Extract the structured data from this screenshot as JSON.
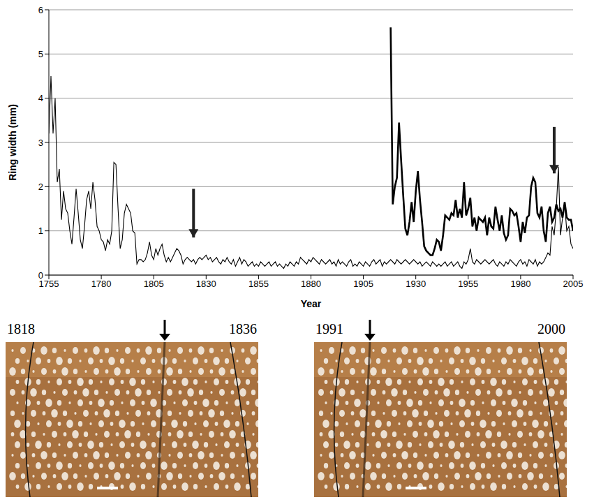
{
  "chart_data": {
    "type": "line",
    "x_label": "Year",
    "y_label": "Ring width (mm)",
    "xlim": [
      1755,
      2005
    ],
    "xticks": [
      1755,
      1780,
      1805,
      1830,
      1855,
      1880,
      1905,
      1930,
      1955,
      1980,
      2005
    ],
    "ylim": [
      0,
      6
    ],
    "yticks": [
      0,
      1,
      2,
      3,
      4,
      5,
      6
    ],
    "grid": true,
    "series": [
      {
        "color": "#000000",
        "line_style": "thin",
        "x": [
          1755,
          1756,
          1757,
          1758,
          1759,
          1760,
          1761,
          1762,
          1763,
          1764,
          1765,
          1766,
          1767,
          1768,
          1769,
          1770,
          1771,
          1772,
          1773,
          1774,
          1775,
          1776,
          1777,
          1778,
          1779,
          1780,
          1781,
          1782,
          1783,
          1784,
          1785,
          1786,
          1787,
          1788,
          1789,
          1790,
          1791,
          1792,
          1793,
          1794,
          1795,
          1796,
          1797,
          1798,
          1799,
          1800,
          1801,
          1802,
          1803,
          1804,
          1805,
          1806,
          1807,
          1808,
          1809,
          1810,
          1811,
          1812,
          1813,
          1814,
          1815,
          1816,
          1817,
          1818,
          1819,
          1820,
          1821,
          1822,
          1823,
          1824,
          1825,
          1826,
          1827,
          1828,
          1829,
          1830,
          1831,
          1832,
          1833,
          1834,
          1835,
          1836,
          1837,
          1838,
          1839,
          1840,
          1841,
          1842,
          1843,
          1844,
          1845,
          1846,
          1847,
          1848,
          1849,
          1850,
          1851,
          1852,
          1853,
          1854,
          1855,
          1856,
          1857,
          1858,
          1859,
          1860,
          1861,
          1862,
          1863,
          1864,
          1865,
          1866,
          1867,
          1868,
          1869,
          1870,
          1871,
          1872,
          1873,
          1874,
          1875,
          1876,
          1877,
          1878,
          1879,
          1880,
          1881,
          1882,
          1883,
          1884,
          1885,
          1886,
          1887,
          1888,
          1889,
          1890,
          1891,
          1892,
          1893,
          1894,
          1895,
          1896,
          1897,
          1898,
          1899,
          1900,
          1901,
          1902,
          1903,
          1904,
          1905,
          1906,
          1907,
          1908,
          1909,
          1910,
          1911,
          1912,
          1913,
          1914,
          1915,
          1916,
          1917,
          1918,
          1919,
          1920,
          1921,
          1922,
          1923,
          1924,
          1925,
          1926,
          1927,
          1928,
          1929,
          1930,
          1931,
          1932,
          1933,
          1934,
          1935,
          1936,
          1937,
          1938,
          1939,
          1940,
          1941,
          1942,
          1943,
          1944,
          1945,
          1946,
          1947,
          1948,
          1949,
          1950,
          1951,
          1952,
          1953,
          1954,
          1955,
          1956,
          1957,
          1958,
          1959,
          1960,
          1961,
          1962,
          1963,
          1964,
          1965,
          1966,
          1967,
          1968,
          1969,
          1970,
          1971,
          1972,
          1973,
          1974,
          1975,
          1976,
          1977,
          1978,
          1979,
          1980,
          1981,
          1982,
          1983,
          1984,
          1985,
          1986,
          1987,
          1988,
          1989,
          1990,
          1991,
          1992,
          1993,
          1994,
          1995,
          1996,
          1997,
          1998,
          1999,
          2000,
          2001,
          2002,
          2003,
          2004,
          2005
        ],
        "values": [
          3.2,
          4.5,
          3.2,
          4.0,
          2.1,
          2.4,
          1.25,
          1.9,
          1.5,
          1.4,
          1.0,
          0.7,
          1.3,
          1.95,
          1.4,
          0.8,
          0.6,
          1.1,
          1.7,
          1.9,
          1.5,
          2.1,
          1.7,
          1.1,
          1.0,
          0.8,
          0.75,
          0.55,
          0.8,
          0.7,
          1.0,
          2.55,
          2.5,
          1.5,
          0.6,
          0.8,
          1.4,
          1.6,
          1.5,
          1.4,
          1.0,
          0.95,
          0.25,
          0.35,
          0.35,
          0.3,
          0.35,
          0.5,
          0.75,
          0.45,
          0.35,
          0.6,
          0.45,
          0.6,
          0.7,
          0.45,
          0.3,
          0.4,
          0.3,
          0.4,
          0.5,
          0.6,
          0.55,
          0.45,
          0.25,
          0.35,
          0.4,
          0.35,
          0.3,
          0.35,
          0.25,
          0.35,
          0.4,
          0.35,
          0.4,
          0.45,
          0.35,
          0.4,
          0.3,
          0.35,
          0.4,
          0.3,
          0.25,
          0.35,
          0.3,
          0.4,
          0.3,
          0.25,
          0.35,
          0.2,
          0.3,
          0.4,
          0.25,
          0.35,
          0.3,
          0.2,
          0.25,
          0.3,
          0.2,
          0.25,
          0.2,
          0.3,
          0.25,
          0.2,
          0.25,
          0.3,
          0.2,
          0.25,
          0.3,
          0.2,
          0.25,
          0.2,
          0.15,
          0.25,
          0.2,
          0.3,
          0.25,
          0.2,
          0.3,
          0.25,
          0.4,
          0.35,
          0.3,
          0.25,
          0.35,
          0.3,
          0.4,
          0.35,
          0.3,
          0.25,
          0.35,
          0.3,
          0.25,
          0.3,
          0.35,
          0.25,
          0.3,
          0.2,
          0.35,
          0.25,
          0.3,
          0.25,
          0.2,
          0.3,
          0.35,
          0.2,
          0.25,
          0.2,
          0.3,
          0.25,
          0.2,
          0.3,
          0.25,
          0.2,
          0.3,
          0.35,
          0.25,
          0.3,
          0.35,
          0.2,
          0.3,
          0.25,
          0.3,
          0.35,
          0.3,
          0.25,
          0.35,
          0.3,
          0.25,
          0.3,
          0.35,
          0.3,
          0.25,
          0.3,
          0.35,
          0.3,
          0.25,
          0.3,
          0.2,
          0.25,
          0.3,
          0.25,
          0.2,
          0.3,
          0.25,
          0.2,
          0.25,
          0.2,
          0.25,
          0.3,
          0.2,
          0.25,
          0.3,
          0.2,
          0.25,
          0.3,
          0.2,
          0.15,
          0.3,
          0.25,
          0.35,
          0.6,
          0.3,
          0.25,
          0.35,
          0.3,
          0.25,
          0.3,
          0.35,
          0.3,
          0.25,
          0.3,
          0.35,
          0.25,
          0.2,
          0.3,
          0.25,
          0.2,
          0.3,
          0.25,
          0.35,
          0.3,
          0.25,
          0.2,
          0.3,
          0.35,
          0.25,
          0.3,
          0.2,
          0.35,
          0.3,
          0.25,
          0.35,
          0.2,
          0.3,
          0.25,
          0.3,
          0.4,
          0.5,
          0.45,
          1.1,
          0.9,
          1.5,
          2.45,
          0.9,
          1.3,
          1.6,
          1.0,
          1.1,
          0.7,
          0.6
        ]
      },
      {
        "color": "#000000",
        "line_style": "thick",
        "x": [
          1918,
          1919,
          1920,
          1921,
          1922,
          1923,
          1924,
          1925,
          1926,
          1927,
          1928,
          1929,
          1930,
          1931,
          1932,
          1933,
          1934,
          1935,
          1936,
          1937,
          1938,
          1939,
          1940,
          1941,
          1942,
          1943,
          1944,
          1945,
          1946,
          1947,
          1948,
          1949,
          1950,
          1951,
          1952,
          1953,
          1954,
          1955,
          1956,
          1957,
          1958,
          1959,
          1960,
          1961,
          1962,
          1963,
          1964,
          1965,
          1966,
          1967,
          1968,
          1969,
          1970,
          1971,
          1972,
          1973,
          1974,
          1975,
          1976,
          1977,
          1978,
          1979,
          1980,
          1981,
          1982,
          1983,
          1984,
          1985,
          1986,
          1987,
          1988,
          1989,
          1990,
          1991,
          1992,
          1993,
          1994,
          1995,
          1996,
          1997,
          1998,
          1999,
          2000,
          2001,
          2002,
          2003,
          2004,
          2005
        ],
        "values": [
          5.6,
          1.6,
          2.0,
          2.2,
          3.45,
          2.6,
          1.8,
          1.05,
          0.9,
          1.2,
          1.65,
          1.2,
          1.9,
          2.35,
          1.7,
          1.2,
          0.65,
          0.55,
          0.5,
          0.45,
          0.45,
          0.6,
          0.8,
          0.75,
          0.55,
          0.9,
          1.35,
          1.3,
          1.25,
          1.4,
          1.35,
          1.7,
          1.3,
          1.5,
          1.3,
          2.1,
          1.35,
          1.5,
          1.75,
          1.1,
          1.3,
          1.0,
          1.3,
          1.25,
          1.2,
          1.3,
          0.9,
          1.3,
          1.1,
          1.05,
          1.55,
          1.25,
          1.0,
          1.35,
          0.95,
          0.8,
          0.9,
          1.5,
          1.45,
          1.35,
          1.4,
          1.1,
          0.75,
          1.2,
          0.95,
          1.3,
          1.35,
          2.0,
          2.2,
          2.1,
          1.4,
          1.3,
          1.55,
          1.0,
          0.75,
          1.4,
          1.55,
          1.2,
          1.3,
          1.6,
          1.45,
          1.5,
          1.3,
          1.65,
          1.3,
          1.25,
          1.25,
          1.0
        ]
      }
    ],
    "arrows": [
      {
        "x": 1824,
        "y_from": 1.95,
        "y_to": 0.85
      },
      {
        "x": 1996,
        "y_from": 3.35,
        "y_to": 2.3
      }
    ]
  },
  "images": [
    {
      "left_label": "1818",
      "right_label": "1836"
    },
    {
      "left_label": "1991",
      "right_label": "2000"
    }
  ]
}
